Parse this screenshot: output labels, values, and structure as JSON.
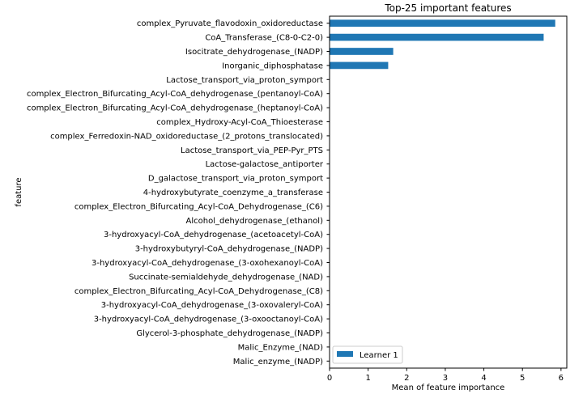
{
  "chart_data": {
    "type": "bar",
    "orientation": "horizontal",
    "title": "Top-25 important features",
    "xlabel": "Mean of feature importance",
    "ylabel": "feature",
    "xlim": [
      0,
      6.15
    ],
    "xticks": [
      0,
      1,
      2,
      3,
      4,
      5,
      6
    ],
    "grid": false,
    "legend_position": "lower-left",
    "categories": [
      "complex_Pyruvate_flavodoxin_oxidoreductase",
      "CoA_Transferase_(C8-0-C2-0)",
      "Isocitrate_dehydrogenase_(NADP)",
      "Inorganic_diphosphatase",
      "Lactose_transport_via_proton_symport",
      "complex_Electron_Bifurcating_Acyl-CoA_dehydrogenase_(pentanoyl-CoA)",
      "complex_Electron_Bifurcating_Acyl-CoA_dehydrogenase_(heptanoyl-CoA)",
      "complex_Hydroxy-Acyl-CoA_Thioesterase",
      "complex_Ferredoxin-NAD_oxidoreductase_(2_protons_translocated)",
      "Lactose_transport_via_PEP-Pyr_PTS",
      "Lactose-galactose_antiporter",
      "D_galactose_transport_via_proton_symport",
      "4-hydroxybutyrate_coenzyme_a_transferase",
      "complex_Electron_Bifurcating_Acyl-CoA_Dehydrogenase_(C6)",
      "Alcohol_dehydrogenase_(ethanol)",
      "3-hydroxyacyl-CoA_dehydrogenase_(acetoacetyl-CoA)",
      "3-hydroxybutyryl-CoA_dehydrogenase_(NADP)",
      "3-hydroxyacyl-CoA_dehydrogenase_(3-oxohexanoyl-CoA)",
      "Succinate-semialdehyde_dehydrogenase_(NAD)",
      "complex_Electron_Bifurcating_Acyl-CoA_Dehydrogenase_(C8)",
      "3-hydroxyacyl-CoA_dehydrogenase_(3-oxovaleryl-CoA)",
      "3-hydroxyacyl-CoA_dehydrogenase_(3-oxooctanoyl-CoA)",
      "Glycerol-3-phosphate_dehydrogenase_(NADP)",
      "Malic_Enzyme_(NAD)",
      "Malic_enzyme_(NADP)"
    ],
    "series": [
      {
        "name": "Learner 1",
        "color": "#1f77b4",
        "values": [
          5.85,
          5.55,
          1.65,
          1.52,
          0,
          0,
          0,
          0,
          0,
          0,
          0,
          0,
          0,
          0,
          0,
          0,
          0,
          0,
          0,
          0,
          0,
          0,
          0,
          0,
          0
        ]
      }
    ]
  }
}
